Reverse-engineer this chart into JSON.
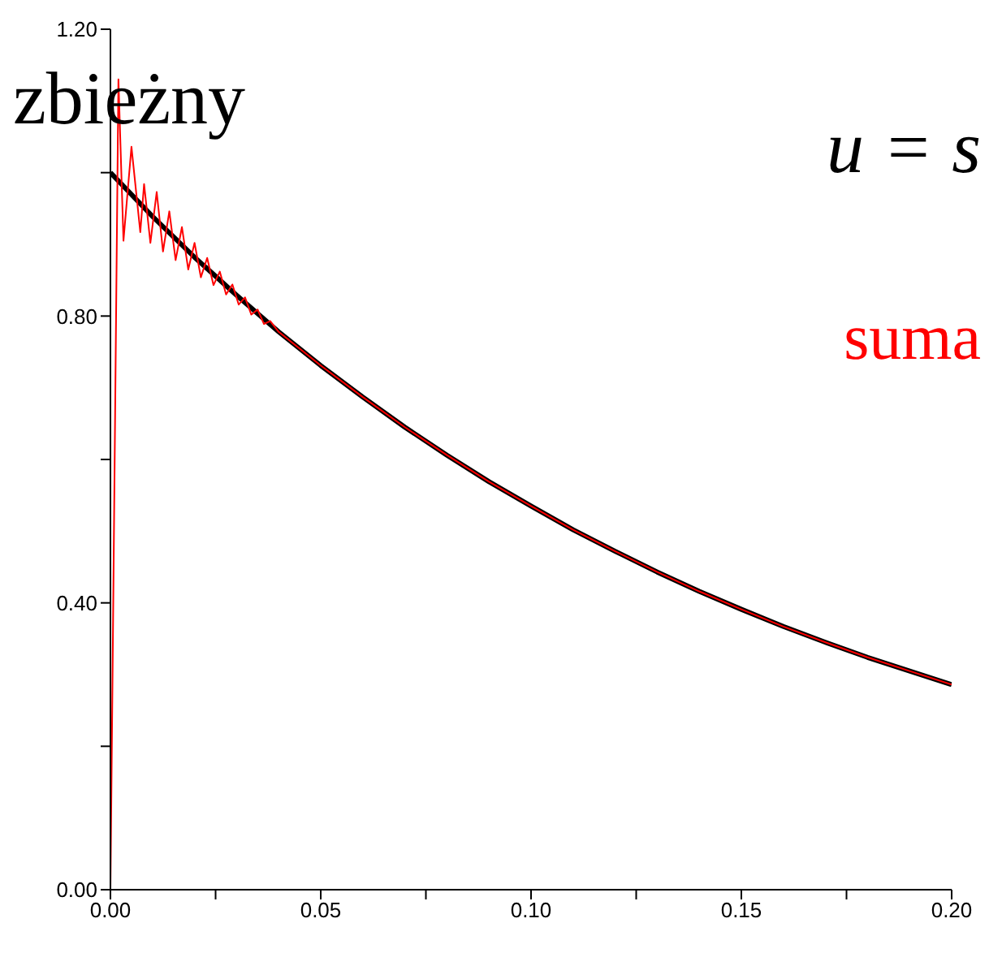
{
  "chart_data": {
    "type": "line",
    "annotations": [
      "zbieżny",
      "u = s",
      "suma"
    ],
    "xlim": [
      0,
      0.2
    ],
    "xticks": [
      {
        "value": 0,
        "label": "0.00"
      },
      {
        "value": 0.025,
        "label": null
      },
      {
        "value": 0.05,
        "label": "0.05"
      },
      {
        "value": 0.075,
        "label": null
      },
      {
        "value": 0.1,
        "label": "0.10"
      },
      {
        "value": 0.125,
        "label": null
      },
      {
        "value": 0.15,
        "label": "0.15"
      },
      {
        "value": 0.175,
        "label": null
      },
      {
        "value": 0.2,
        "label": "0.20"
      }
    ],
    "ylim": [
      0,
      1.2
    ],
    "yticks": [
      {
        "value": 0,
        "label": "0.00"
      },
      {
        "value": 0.2,
        "label": null
      },
      {
        "value": 0.4,
        "label": "0.40"
      },
      {
        "value": 0.6,
        "label": null
      },
      {
        "value": 0.8,
        "label": "0.80"
      },
      {
        "value": 1.0,
        "label": null
      },
      {
        "value": 1.2,
        "label": "1.20"
      }
    ],
    "grid": false,
    "legend": false,
    "marker": "none",
    "line_style": "solid",
    "series": [
      {
        "color": "#ff0000",
        "x": [
          0,
          0.0019,
          0.0031,
          0.005,
          0.0071,
          0.008,
          0.0095,
          0.011,
          0.0125,
          0.014,
          0.0155,
          0.017,
          0.0185,
          0.02,
          0.0215,
          0.023,
          0.0245,
          0.026,
          0.0275,
          0.029,
          0.0305,
          0.032,
          0.0335,
          0.035,
          0.0365,
          0.038,
          0.04,
          0.05,
          0.06,
          0.07,
          0.08,
          0.09,
          0.1,
          0.11,
          0.12,
          0.13,
          0.14,
          0.15,
          0.16,
          0.17,
          0.18,
          0.19,
          0.2
        ],
        "values": [
          0,
          1.13,
          0.905,
          1.036,
          0.917,
          0.984,
          0.902,
          0.973,
          0.89,
          0.946,
          0.878,
          0.924,
          0.865,
          0.902,
          0.854,
          0.881,
          0.843,
          0.862,
          0.83,
          0.844,
          0.816,
          0.826,
          0.802,
          0.809,
          0.789,
          0.793,
          0.778,
          0.731,
          0.687,
          0.645,
          0.606,
          0.569,
          0.535,
          0.502,
          0.472,
          0.443,
          0.416,
          0.391,
          0.367,
          0.345,
          0.324,
          0.305,
          0.286
        ]
      },
      {
        "color": "#000000",
        "x": [
          0,
          0.01,
          0.02,
          0.03,
          0.04,
          0.05,
          0.06,
          0.07,
          0.08,
          0.09,
          0.1,
          0.11,
          0.12,
          0.13,
          0.14,
          0.15,
          0.16,
          0.17,
          0.18,
          0.19,
          0.2
        ],
        "values": [
          1.0,
          0.939,
          0.882,
          0.829,
          0.778,
          0.731,
          0.687,
          0.645,
          0.606,
          0.569,
          0.535,
          0.502,
          0.472,
          0.443,
          0.416,
          0.391,
          0.367,
          0.345,
          0.324,
          0.305,
          0.286
        ]
      }
    ]
  }
}
